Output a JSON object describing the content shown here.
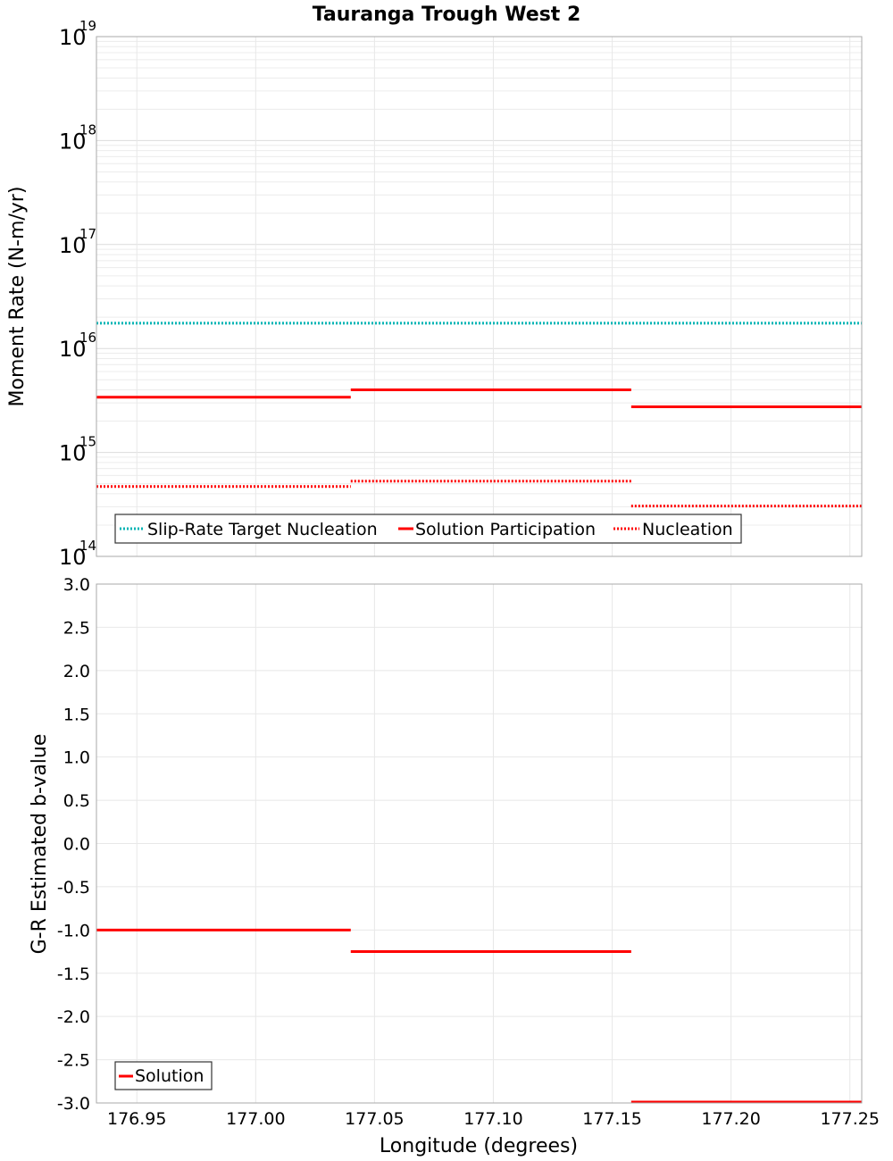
{
  "chart_data": [
    {
      "type": "line",
      "title": "Tauranga Trough West 2",
      "ylabel": "Moment Rate (N-m/yr)",
      "xlabel": "",
      "yscale": "log",
      "ylim": [
        100000000000000.0,
        1e+19
      ],
      "xlim": [
        176.933,
        177.255
      ],
      "ytick_base": "10",
      "yticks": [
        {
          "value": 100000000000000.0,
          "exp": "14"
        },
        {
          "value": 1000000000000000.0,
          "exp": "15"
        },
        {
          "value": 1e+16,
          "exp": "16"
        },
        {
          "value": 1e+17,
          "exp": "17"
        },
        {
          "value": 1e+18,
          "exp": "18"
        },
        {
          "value": 1e+19,
          "exp": "19"
        }
      ],
      "legend_position": "bottom-left",
      "series": [
        {
          "name": "Slip-Rate Target Nucleation",
          "color": "#00b4b4",
          "style": "dotted",
          "segments": [
            {
              "x0": 176.933,
              "x1": 177.255,
              "y": 1.75e+16
            }
          ]
        },
        {
          "name": "Solution Participation",
          "color": "#ff0000",
          "style": "solid",
          "segments": [
            {
              "x0": 176.933,
              "x1": 177.04,
              "y": 3400000000000000.0
            },
            {
              "x0": 177.04,
              "x1": 177.158,
              "y": 4000000000000000.0
            },
            {
              "x0": 177.158,
              "x1": 177.255,
              "y": 2750000000000000.0
            }
          ]
        },
        {
          "name": "Nucleation",
          "color": "#ff0000",
          "style": "dotted",
          "segments": [
            {
              "x0": 176.933,
              "x1": 177.04,
              "y": 470000000000000.0
            },
            {
              "x0": 177.04,
              "x1": 177.158,
              "y": 530000000000000.0
            },
            {
              "x0": 177.158,
              "x1": 177.255,
              "y": 305000000000000.0
            }
          ]
        }
      ]
    },
    {
      "type": "line",
      "title": "",
      "ylabel": "G-R Estimated b-value",
      "xlabel": "Longitude (degrees)",
      "ylim": [
        -3.0,
        3.0
      ],
      "xlim": [
        176.933,
        177.255
      ],
      "yticks": [
        "3.0",
        "2.5",
        "2.0",
        "1.5",
        "1.0",
        "0.5",
        "0.0",
        "-0.5",
        "-1.0",
        "-1.5",
        "-2.0",
        "-2.5",
        "-3.0"
      ],
      "xticks": [
        "176.95",
        "177.00",
        "177.05",
        "177.10",
        "177.15",
        "177.20",
        "177.25"
      ],
      "legend_position": "bottom-left",
      "series": [
        {
          "name": "Solution",
          "color": "#ff0000",
          "style": "solid",
          "segments": [
            {
              "x0": 176.933,
              "x1": 177.04,
              "y": -1.0
            },
            {
              "x0": 177.04,
              "x1": 177.158,
              "y": -1.25
            },
            {
              "x0": 177.158,
              "x1": 177.255,
              "y": -3.0
            }
          ]
        }
      ]
    }
  ]
}
